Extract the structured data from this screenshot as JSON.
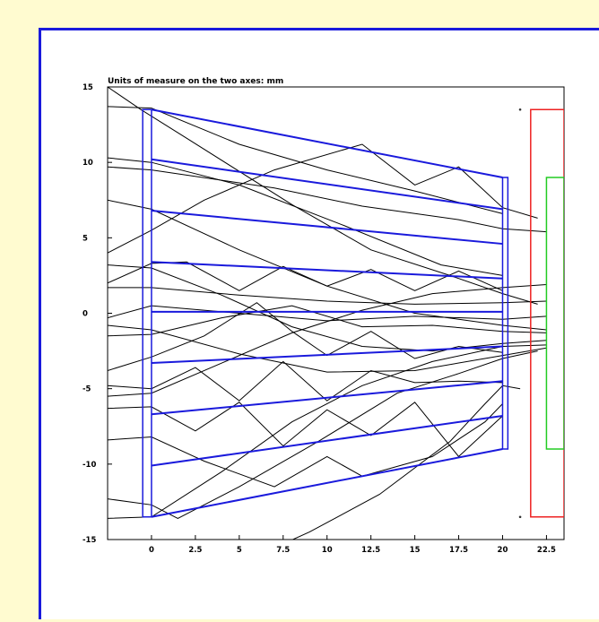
{
  "chart_data": {
    "type": "line",
    "title": "Units of measure on the two axes: mm",
    "xlabel": "",
    "ylabel": "",
    "xlim": [
      -2.5,
      23.5
    ],
    "ylim": [
      -15,
      15
    ],
    "x_ticks": [
      "0",
      "2.5",
      "5",
      "7.5",
      "10",
      "12.5",
      "15",
      "17.5",
      "20",
      "22.5"
    ],
    "x_tick_values": [
      0,
      2.5,
      5,
      7.5,
      10,
      12.5,
      15,
      17.5,
      20,
      22.5
    ],
    "y_ticks": [
      "15",
      "10",
      "5",
      "0",
      "-5",
      "-10",
      "-15"
    ],
    "y_tick_values": [
      15,
      10,
      5,
      0,
      -5,
      -10,
      -15
    ],
    "grid": false,
    "colors": {
      "lens": "#1a1adc",
      "rays": "#000000",
      "outer_aperture": "#ee2222",
      "inner_aperture": "#22cc22"
    },
    "lens_rect": {
      "x": [
        -0.5,
        0
      ],
      "y": [
        -13.5,
        13.5
      ]
    },
    "exit_rect": {
      "x": [
        20,
        20.3
      ],
      "y": [
        -9,
        9
      ]
    },
    "outer_aperture_rect": {
      "x": [
        21.6,
        23.5
      ],
      "y": [
        -13.5,
        13.5
      ]
    },
    "inner_aperture_rect": {
      "x": [
        22.5,
        23.5
      ],
      "y": [
        -9,
        9
      ]
    },
    "marks": [
      [
        21,
        13.5
      ],
      [
        21,
        -13.5
      ]
    ],
    "blue_segments": [
      [
        [
          0,
          13.5
        ],
        [
          20,
          9
        ]
      ],
      [
        [
          0,
          10.2
        ],
        [
          20,
          6.9
        ]
      ],
      [
        [
          0,
          6.8
        ],
        [
          20,
          4.6
        ]
      ],
      [
        [
          0,
          3.4
        ],
        [
          20,
          2.3
        ]
      ],
      [
        [
          0,
          0.1
        ],
        [
          20,
          0.1
        ]
      ],
      [
        [
          0,
          -3.3
        ],
        [
          20,
          -2.2
        ]
      ],
      [
        [
          0,
          -6.7
        ],
        [
          20,
          -4.5
        ]
      ],
      [
        [
          0,
          -10.1
        ],
        [
          20,
          -6.8
        ]
      ],
      [
        [
          0,
          -13.5
        ],
        [
          20,
          -9
        ]
      ]
    ],
    "rays": [
      [
        [
          -2.5,
          15
        ],
        [
          -0.6,
          13.5
        ],
        [
          2,
          11.6
        ],
        [
          8,
          7.2
        ],
        [
          12.5,
          4.2
        ],
        [
          17,
          2.5
        ],
        [
          20,
          1.3
        ],
        [
          22,
          0.6
        ]
      ],
      [
        [
          -2.5,
          13.7
        ],
        [
          0,
          13.6
        ],
        [
          5,
          11.2
        ],
        [
          10,
          9.5
        ],
        [
          15,
          8.1
        ],
        [
          18,
          7.2
        ],
        [
          20,
          6.6
        ]
      ],
      [
        [
          -2.5,
          9.7
        ],
        [
          0,
          9.5
        ],
        [
          7,
          8.3
        ],
        [
          12,
          7.1
        ],
        [
          17.5,
          6.2
        ],
        [
          20,
          5.6
        ],
        [
          22.5,
          5.4
        ]
      ],
      [
        [
          -2.5,
          10.3
        ],
        [
          0,
          10
        ],
        [
          5,
          8.5
        ],
        [
          11,
          5.8
        ],
        [
          16.5,
          3.2
        ],
        [
          20,
          2.5
        ]
      ],
      [
        [
          -2.5,
          4
        ],
        [
          0,
          5.5
        ],
        [
          3,
          7.5
        ],
        [
          7,
          9.5
        ],
        [
          12,
          11.2
        ],
        [
          15,
          8.5
        ],
        [
          17.5,
          9.7
        ],
        [
          20,
          7
        ],
        [
          22,
          6.3
        ]
      ],
      [
        [
          -2.5,
          2
        ],
        [
          0,
          3.3
        ],
        [
          2,
          3.4
        ],
        [
          5,
          1.5
        ],
        [
          7.5,
          3.1
        ],
        [
          10,
          1.8
        ],
        [
          12.5,
          2.9
        ],
        [
          15,
          1.5
        ],
        [
          17.5,
          2.8
        ],
        [
          20,
          1.5
        ]
      ],
      [
        [
          -2.5,
          1.7
        ],
        [
          0,
          1.7
        ],
        [
          5,
          1.2
        ],
        [
          10,
          0.8
        ],
        [
          15,
          0.6
        ],
        [
          20,
          0.7
        ],
        [
          22.5,
          0.8
        ]
      ],
      [
        [
          -2.5,
          -0.3
        ],
        [
          0,
          0.5
        ],
        [
          5,
          0
        ],
        [
          10,
          -0.5
        ],
        [
          15,
          -0.2
        ],
        [
          20,
          -0.4
        ],
        [
          22.5,
          -0.2
        ]
      ],
      [
        [
          -2.5,
          -1.5
        ],
        [
          0,
          -1.4
        ],
        [
          4,
          -0.3
        ],
        [
          8,
          0.5
        ],
        [
          12,
          -0.9
        ],
        [
          16,
          -0.8
        ],
        [
          20,
          -1.2
        ],
        [
          22.5,
          -1.3
        ]
      ],
      [
        [
          -2.5,
          -3.8
        ],
        [
          0,
          -2.9
        ],
        [
          3,
          -1.5
        ],
        [
          6,
          0.7
        ],
        [
          8,
          -1.2
        ],
        [
          10,
          -2.8
        ],
        [
          12.5,
          -1.2
        ],
        [
          15,
          -3
        ],
        [
          17.5,
          -2.2
        ],
        [
          20,
          -2.6
        ]
      ],
      [
        [
          -2.5,
          -4.8
        ],
        [
          0,
          -5
        ],
        [
          2.5,
          -3.6
        ],
        [
          5,
          -5.8
        ],
        [
          7.5,
          -3.2
        ],
        [
          10,
          -5.8
        ],
        [
          12.5,
          -3.8
        ],
        [
          15,
          -4.6
        ],
        [
          17.5,
          -4.5
        ],
        [
          20,
          -4.6
        ]
      ],
      [
        [
          -2.5,
          -6.3
        ],
        [
          0,
          -6.2
        ],
        [
          2.5,
          -7.8
        ],
        [
          5,
          -5.9
        ],
        [
          7.5,
          -8.8
        ],
        [
          10,
          -6.4
        ],
        [
          12.5,
          -8.1
        ],
        [
          15,
          -5.9
        ],
        [
          17.5,
          -9.5
        ],
        [
          20,
          -6.8
        ]
      ],
      [
        [
          -2.5,
          -8.4
        ],
        [
          0,
          -8.2
        ],
        [
          3,
          -9.8
        ],
        [
          7,
          -11.5
        ],
        [
          10,
          -9.5
        ],
        [
          12,
          -10.8
        ],
        [
          16,
          -9.5
        ],
        [
          19,
          -7.2
        ],
        [
          20,
          -6
        ]
      ],
      [
        [
          -2.5,
          -12.3
        ],
        [
          0,
          -12.7
        ],
        [
          1.5,
          -13.6
        ],
        [
          5,
          -11.5
        ],
        [
          9.5,
          -8.5
        ],
        [
          14,
          -5.3
        ],
        [
          17.5,
          -4
        ],
        [
          20,
          -3
        ],
        [
          22,
          -2.5
        ]
      ],
      [
        [
          -2.5,
          -13.6
        ],
        [
          0,
          -13.5
        ],
        [
          4,
          -10.5
        ],
        [
          8,
          -7.2
        ],
        [
          12,
          -4.8
        ],
        [
          16,
          -3.2
        ],
        [
          20,
          -2.2
        ],
        [
          22.5,
          -2.1
        ]
      ],
      [
        [
          5,
          -16.6
        ],
        [
          9,
          -14.5
        ],
        [
          13,
          -12
        ],
        [
          17,
          -8.5
        ],
        [
          19,
          -6
        ],
        [
          20,
          -4.8
        ],
        [
          21,
          -5
        ]
      ],
      [
        [
          -2.5,
          -0.8
        ],
        [
          0,
          -1.1
        ],
        [
          5,
          -2.7
        ],
        [
          10,
          -3.9
        ],
        [
          15,
          -3.8
        ],
        [
          20,
          -2.8
        ],
        [
          22.5,
          -2.3
        ]
      ],
      [
        [
          -2.5,
          3.2
        ],
        [
          0,
          3
        ],
        [
          4,
          1.2
        ],
        [
          8,
          -0.9
        ],
        [
          12,
          -2.2
        ],
        [
          16,
          -2.5
        ],
        [
          20,
          -2
        ],
        [
          22.5,
          -1.8
        ]
      ],
      [
        [
          -2.5,
          -5.5
        ],
        [
          0,
          -5.3
        ],
        [
          4,
          -3.3
        ],
        [
          8,
          -1.3
        ],
        [
          12,
          0.2
        ],
        [
          16,
          1.3
        ],
        [
          20,
          1.7
        ],
        [
          22.5,
          1.9
        ]
      ],
      [
        [
          -2.5,
          7.5
        ],
        [
          0,
          6.9
        ],
        [
          5,
          4.2
        ],
        [
          10,
          1.8
        ],
        [
          15,
          0
        ],
        [
          20,
          -0.8
        ],
        [
          22.5,
          -1.1
        ]
      ]
    ]
  }
}
